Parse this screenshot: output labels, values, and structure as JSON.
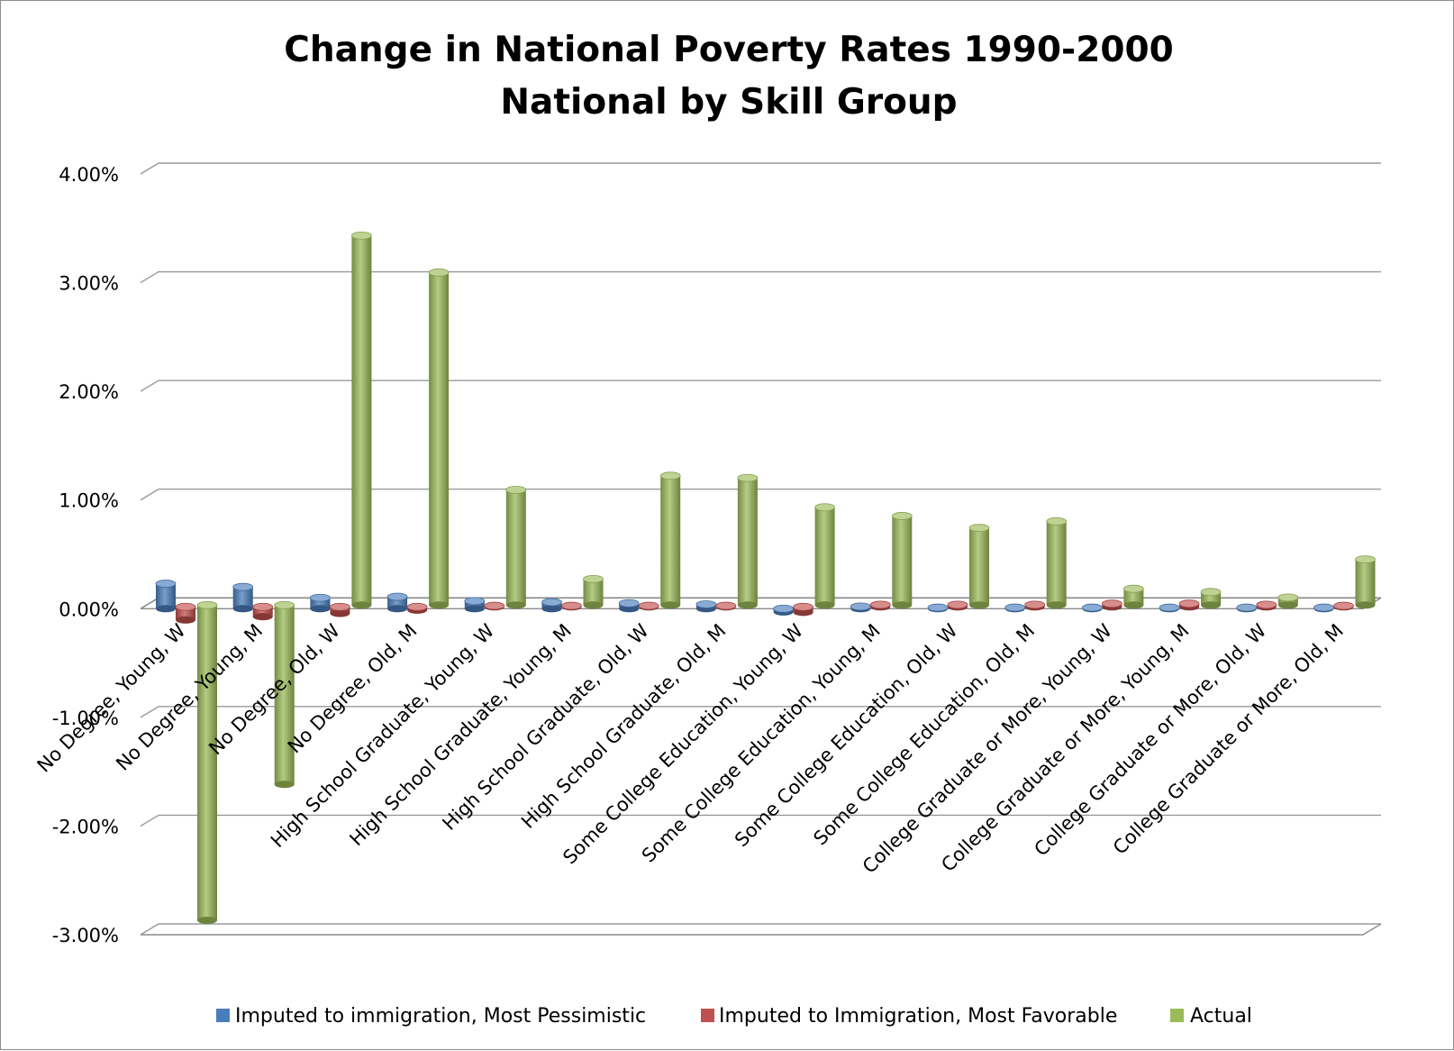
{
  "chart_data": {
    "type": "bar",
    "title": "Change in National Poverty Rates 1990-2000",
    "subtitle": "National by Skill Group",
    "xlabel": "",
    "ylabel": "",
    "ylim": [
      -0.03,
      0.04
    ],
    "yticks": [
      "4.00%",
      "3.00%",
      "2.00%",
      "1.00%",
      "0.00%",
      "-1.00%",
      "-2.00%",
      "-3.00%"
    ],
    "grid": true,
    "legend_position": "bottom",
    "categories": [
      "No Degree, Young, W",
      "No Degree, Young, M",
      "No Degree, Old, W",
      "No Degree, Old, M",
      "High School Graduate, Young, W",
      "High School Graduate, Young, M",
      "High School Graduate, Old, W",
      "High School Graduate, Old, M",
      "Some College Education, Young, W",
      "Some College Education, Young, M",
      "Some College Education, Old, W",
      "Some College Education, Old, M",
      "College Graduate or More, Young, W",
      "College Graduate or More, Young, M",
      "College Graduate or More, Old, W",
      "College Graduate or More, Old, M"
    ],
    "series": [
      {
        "name": "Imputed to immigration, Most Pessimistic",
        "color": "#4a7ebb",
        "values": [
          0.0023,
          0.002,
          0.001,
          0.0011,
          0.0007,
          0.0006,
          0.0005,
          0.0004,
          -0.0003,
          0.0002,
          0.0001,
          0.0001,
          0.0001,
          0.0001,
          0.0001,
          0.0001
        ]
      },
      {
        "name": "Imputed to Immigration, Most Favorable",
        "color": "#c0504d",
        "values": [
          -0.0012,
          -0.0009,
          -0.0006,
          -0.0003,
          0.0001,
          0.0001,
          0.0001,
          0.0001,
          -0.0005,
          0.0002,
          0.0002,
          0.0002,
          0.0003,
          0.0003,
          0.0002,
          0.0001
        ]
      },
      {
        "name": "Actual",
        "color": "#9bbb59",
        "values": [
          -0.029,
          -0.0165,
          0.034,
          0.0306,
          0.0106,
          0.0024,
          0.0119,
          0.0117,
          0.009,
          0.0082,
          0.0071,
          0.0077,
          0.0015,
          0.0012,
          0.0007,
          0.0042
        ]
      }
    ]
  }
}
